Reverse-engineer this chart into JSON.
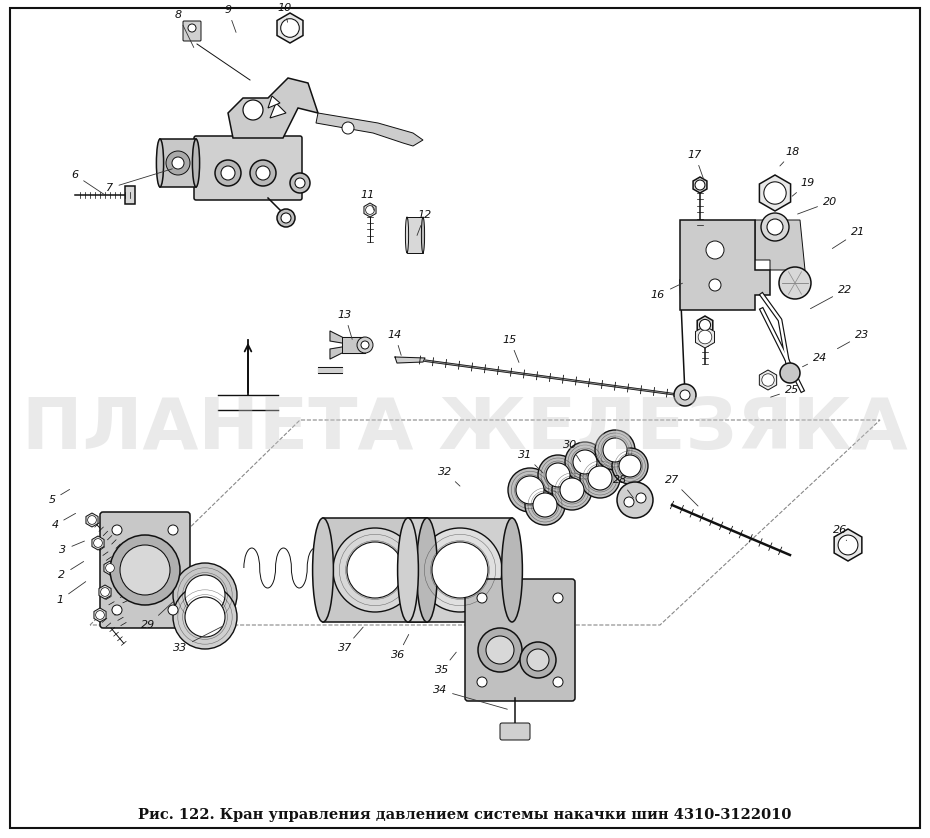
{
  "title": "Рис. 122. Кран управления давлением системы накачки шин 4310-3122010",
  "title_fontsize": 10.5,
  "background_color": "#ffffff",
  "watermark_text": "ПЛАНЕТА ЖЕЛЕЗЯКА",
  "watermark_color": "#c8c8c8",
  "watermark_fontsize": 52,
  "watermark_alpha": 0.38,
  "fig_width": 9.3,
  "fig_height": 8.38,
  "dpi": 100,
  "text_color": "#111111",
  "lc": "#111111",
  "lw_main": 1.1,
  "lw_thin": 0.7,
  "lw_thick": 1.8,
  "fc_part": "#e8e8e8",
  "fc_white": "#ffffff"
}
